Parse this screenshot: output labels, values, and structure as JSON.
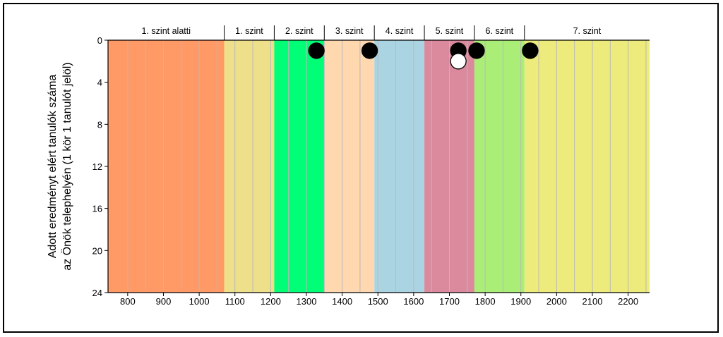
{
  "chart_data": {
    "type": "scatter",
    "xlabel": "",
    "ylabel_lines": [
      "Adott eredményt elért tanulók száma",
      "az Önök telephelyén (1 kör 1 tanulót jelöl)"
    ],
    "xlim": [
      745,
      2260
    ],
    "ylim": [
      0,
      24
    ],
    "y_inverted": true,
    "x_ticks": [
      800,
      900,
      1000,
      1100,
      1200,
      1300,
      1400,
      1500,
      1600,
      1700,
      1800,
      1900,
      2000,
      2100,
      2200
    ],
    "y_ticks": [
      0,
      4,
      8,
      12,
      16,
      20,
      24
    ],
    "grid_step_x": 50,
    "levels": [
      {
        "label": "1. szint alatti",
        "from": 745,
        "to": 1070,
        "color": "#FF9966"
      },
      {
        "label": "1. szint",
        "from": 1070,
        "to": 1210,
        "color": "#EEE08A"
      },
      {
        "label": "2. szint",
        "from": 1210,
        "to": 1350,
        "color": "#00FF77"
      },
      {
        "label": "3. szint",
        "from": 1350,
        "to": 1490,
        "color": "#FFD8B0"
      },
      {
        "label": "4. szint",
        "from": 1490,
        "to": 1630,
        "color": "#ABD4E3"
      },
      {
        "label": "5. szint",
        "from": 1630,
        "to": 1770,
        "color": "#DB8A9E"
      },
      {
        "label": "6. szint",
        "from": 1770,
        "to": 1910,
        "color": "#AAEE77"
      },
      {
        "label": "7. szint",
        "from": 1910,
        "to": 2260,
        "color": "#EDEB7B"
      }
    ],
    "points": [
      {
        "x": 1328,
        "y": 1,
        "fill": "#000000"
      },
      {
        "x": 1477,
        "y": 1,
        "fill": "#000000"
      },
      {
        "x": 1725,
        "y": 1,
        "fill": "#000000"
      },
      {
        "x": 1725,
        "y": 2,
        "fill": "#FFFFFF"
      },
      {
        "x": 1776,
        "y": 1,
        "fill": "#000000"
      },
      {
        "x": 1926,
        "y": 1,
        "fill": "#000000"
      }
    ]
  }
}
